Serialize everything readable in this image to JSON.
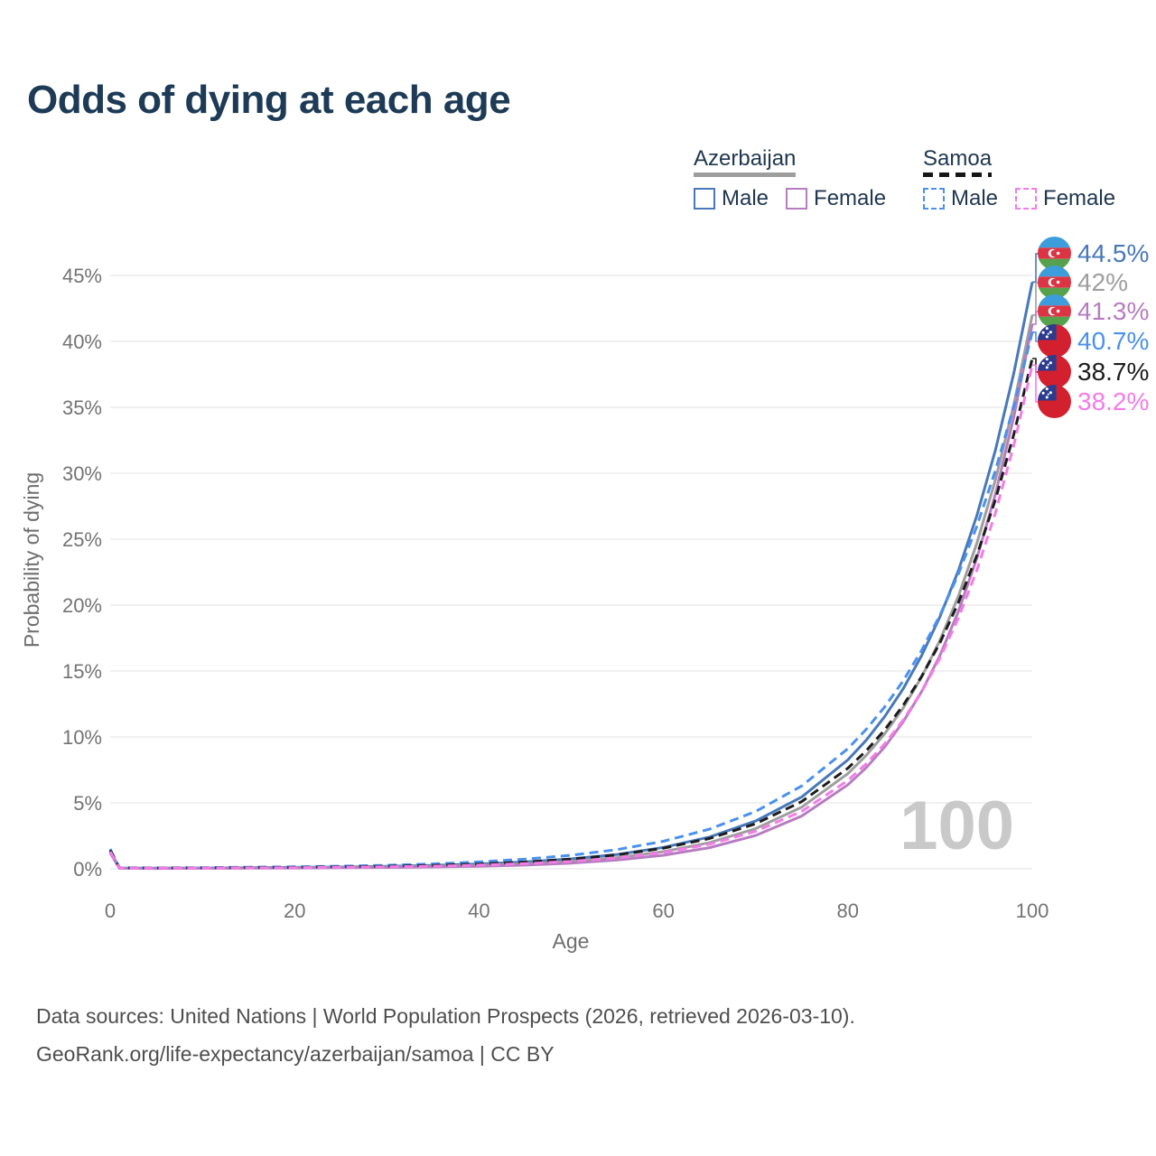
{
  "title": "Odds of dying at each age",
  "legend": {
    "groups": [
      {
        "label": "Azerbaijan",
        "line_style": "solid",
        "underline_color": "#9e9e9e",
        "items": [
          {
            "label": "Male",
            "color": "#4878b9"
          },
          {
            "label": "Female",
            "color": "#b77cc0"
          }
        ]
      },
      {
        "label": "Samoa",
        "line_style": "dashed",
        "underline_color": "#161616",
        "items": [
          {
            "label": "Male",
            "color": "#4a90ee"
          },
          {
            "label": "Female",
            "color": "#f47be8"
          }
        ]
      }
    ]
  },
  "chart_data": {
    "type": "line",
    "title": "Odds of dying at each age",
    "xlabel": "Age",
    "ylabel": "Probability of dying",
    "x_ticks": [
      0,
      20,
      40,
      60,
      80,
      100
    ],
    "y_ticks": [
      "0%",
      "5%",
      "10%",
      "15%",
      "20%",
      "25%",
      "30%",
      "35%",
      "40%",
      "45%"
    ],
    "y_tick_values": [
      0,
      5,
      10,
      15,
      20,
      25,
      30,
      35,
      40,
      45
    ],
    "xlim": [
      0,
      100
    ],
    "ylim_percent": [
      0,
      47
    ],
    "grid": "horizontal",
    "legend_position": "top-right",
    "hovered_age": "100",
    "x": [
      0,
      1,
      5,
      10,
      15,
      20,
      25,
      30,
      35,
      40,
      45,
      50,
      55,
      60,
      65,
      70,
      75,
      80,
      82,
      84,
      86,
      88,
      90,
      92,
      94,
      96,
      98,
      100
    ],
    "series": [
      {
        "name": "Azerbaijan Male",
        "country": "Azerbaijan",
        "sex": "Male",
        "style": "solid",
        "color": "#4878b9",
        "end_label": "44.5%",
        "end_value": 44.5,
        "values": [
          1.35,
          0.06,
          0.05,
          0.06,
          0.08,
          0.11,
          0.14,
          0.19,
          0.26,
          0.37,
          0.52,
          0.75,
          1.09,
          1.62,
          2.41,
          3.62,
          5.45,
          8.26,
          9.76,
          11.55,
          13.66,
          16.17,
          19.13,
          22.64,
          26.8,
          31.75,
          37.6,
          44.5
        ]
      },
      {
        "name": "Azerbaijan Both sexes",
        "country": "Azerbaijan",
        "sex": "Both",
        "style": "solid",
        "color": "#9e9e9e",
        "end_label": "42%",
        "end_value": 42,
        "values": [
          1.28,
          0.05,
          0.04,
          0.05,
          0.06,
          0.08,
          0.11,
          0.14,
          0.19,
          0.27,
          0.38,
          0.57,
          0.85,
          1.3,
          1.98,
          3.05,
          4.68,
          7.22,
          8.6,
          10.25,
          12.2,
          14.55,
          17.35,
          20.7,
          24.7,
          29.5,
          35.2,
          42
        ]
      },
      {
        "name": "Azerbaijan Female",
        "country": "Azerbaijan",
        "sex": "Female",
        "style": "solid",
        "color": "#b77cc0",
        "end_label": "41.3%",
        "end_value": 41.3,
        "values": [
          1.2,
          0.04,
          0.03,
          0.04,
          0.05,
          0.06,
          0.08,
          0.1,
          0.14,
          0.19,
          0.28,
          0.43,
          0.67,
          1.03,
          1.6,
          2.53,
          4.01,
          6.37,
          7.67,
          9.25,
          11.15,
          13.44,
          16.2,
          19.54,
          23.57,
          28.42,
          34.28,
          41.3
        ]
      },
      {
        "name": "Samoa Male",
        "country": "Samoa",
        "sex": "Male",
        "style": "dashed",
        "color": "#4a90ee",
        "end_label": "40.7%",
        "end_value": 40.7,
        "values": [
          1.5,
          0.08,
          0.07,
          0.09,
          0.12,
          0.15,
          0.2,
          0.27,
          0.37,
          0.52,
          0.73,
          1.03,
          1.46,
          2.09,
          3.01,
          4.35,
          6.29,
          9.11,
          10.58,
          12.28,
          14.26,
          16.57,
          19.25,
          22.37,
          25.99,
          30.21,
          35.11,
          40.7
        ]
      },
      {
        "name": "Samoa Both sexes",
        "country": "Samoa",
        "sex": "Both",
        "style": "dashed",
        "color": "#1c1c1c",
        "end_label": "38.7%",
        "end_value": 38.7,
        "values": [
          1.4,
          0.07,
          0.06,
          0.07,
          0.09,
          0.11,
          0.15,
          0.19,
          0.26,
          0.36,
          0.51,
          0.73,
          1.06,
          1.56,
          2.3,
          3.42,
          5.1,
          7.63,
          8.96,
          10.54,
          12.4,
          14.59,
          17.16,
          20.2,
          23.78,
          28,
          32.96,
          38.7
        ]
      },
      {
        "name": "Samoa Female",
        "country": "Samoa",
        "sex": "Female",
        "style": "dashed",
        "color": "#f47be8",
        "end_label": "38.2%",
        "end_value": 38.2,
        "values": [
          1.3,
          0.06,
          0.05,
          0.06,
          0.07,
          0.09,
          0.12,
          0.15,
          0.2,
          0.28,
          0.39,
          0.56,
          0.82,
          1.23,
          1.86,
          2.84,
          4.36,
          6.7,
          7.97,
          9.48,
          11.28,
          13.43,
          15.99,
          19.03,
          22.66,
          26.99,
          32.14,
          38.2
        ]
      }
    ]
  },
  "footer": {
    "line1": "Data sources: United Nations | World Population Prospects (2026, retrieved 2026-03-10).",
    "line2": "GeoRank.org/life-expectancy/azerbaijan/samoa | CC BY"
  }
}
